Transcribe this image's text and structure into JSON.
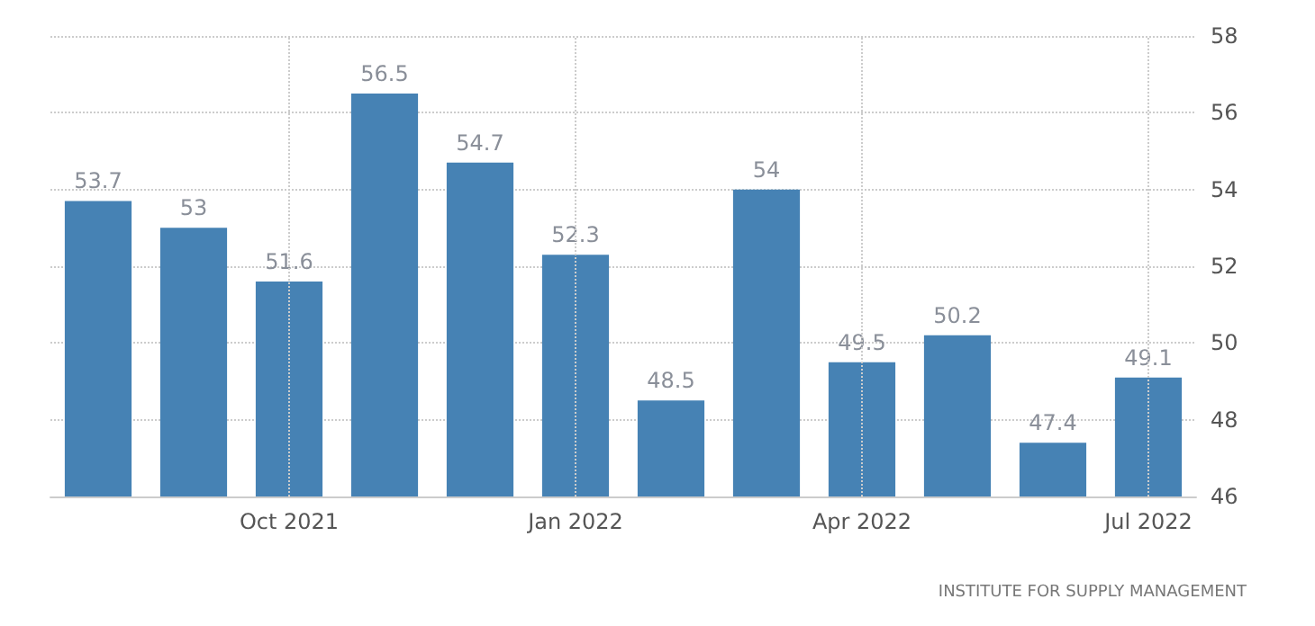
{
  "chart_data": {
    "type": "bar",
    "categories": [
      null,
      null,
      "Oct 2021",
      null,
      null,
      "Jan 2022",
      null,
      null,
      "Apr 2022",
      null,
      null,
      "Jul 2022"
    ],
    "values": [
      53.7,
      53,
      51.6,
      56.5,
      54.7,
      52.3,
      48.5,
      54,
      49.5,
      50.2,
      47.4,
      49.1
    ],
    "color": "#4682b4",
    "ylim": [
      46,
      58
    ],
    "yticks": [
      46,
      48,
      50,
      52,
      54,
      56,
      58
    ],
    "grid": true,
    "data_labels": true,
    "annotations": [
      "INSTITUTE FOR SUPPLY MANAGEMENT"
    ]
  }
}
